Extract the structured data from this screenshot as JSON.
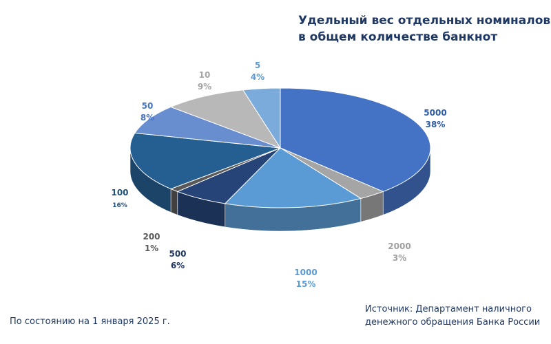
{
  "title": {
    "line1": "Удельный вес отдельных номиналов",
    "line2": "в общем количестве банкнот"
  },
  "footer": {
    "date_note": "По состоянию на 1 января 2025 г.",
    "source_line1": "Источник: Департамент наличного",
    "source_line2": "денежного обращения Банка России"
  },
  "chart_data": {
    "type": "pie",
    "title": "Удельный вес отдельных номиналов в общем количестве банкнот",
    "categories": [
      "5000",
      "2000",
      "1000",
      "500",
      "200",
      "100",
      "50",
      "10",
      "5"
    ],
    "values": [
      38,
      3,
      15,
      6,
      1,
      16,
      8,
      9,
      4
    ],
    "value_labels": [
      "38%",
      "3%",
      "15%",
      "6%",
      "1%",
      "16%",
      "8%",
      "9%",
      "4%"
    ],
    "unit": "%",
    "colors": [
      "#4472c4",
      "#a5a5a5",
      "#5b9bd5",
      "#264478",
      "#595959",
      "#255e91",
      "#698ed0",
      "#b8b8b8",
      "#7aabdb"
    ],
    "label_colors": [
      "#2e5ba8",
      "#a0a0a0",
      "#5b9bd5",
      "#1f3864",
      "#595959",
      "#1f4e79",
      "#4472c4",
      "#a5a5a5",
      "#5b9bd5"
    ],
    "style": "3d"
  }
}
